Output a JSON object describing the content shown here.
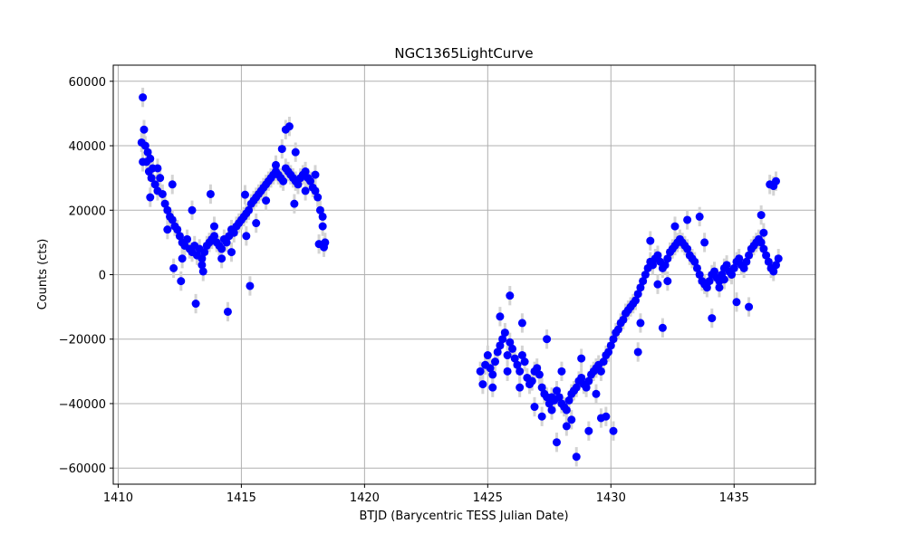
{
  "chart_data": {
    "type": "scatter",
    "title": "NGC1365LightCurve",
    "xlabel": "BTJD (Barycentric TESS Julian Date)",
    "ylabel": "Counts (cts)",
    "xlim": [
      1409.8,
      1438.3
    ],
    "ylim": [
      -65000,
      65000
    ],
    "xticks": [
      1410,
      1415,
      1420,
      1425,
      1430,
      1435
    ],
    "yticks": [
      -60000,
      -40000,
      -20000,
      0,
      20000,
      40000,
      60000
    ],
    "xtick_labels": [
      "1410",
      "1415",
      "1420",
      "1425",
      "1430",
      "1435"
    ],
    "ytick_labels": [
      "−60000",
      "−40000",
      "−20000",
      "0",
      "20000",
      "40000",
      "60000"
    ],
    "grid": true,
    "marker_color": "#0000ff",
    "errorbar_color": "#d3d3d3",
    "errorbar_half_height": 3000,
    "series": [
      {
        "x": [
          1410.95,
          1411.0,
          1411.05,
          1411.1,
          1411.15,
          1411.2,
          1411.25,
          1411.3,
          1411.35,
          1411.4,
          1411.5,
          1411.6,
          1411.7,
          1411.8,
          1411.9,
          1412.0,
          1412.1,
          1412.2,
          1412.3,
          1412.4,
          1412.5,
          1412.6,
          1412.7,
          1412.8,
          1412.9,
          1413.0,
          1413.1,
          1413.2,
          1413.3,
          1413.4,
          1413.5,
          1413.6,
          1413.7,
          1413.8,
          1413.9,
          1414.0,
          1414.1,
          1414.2,
          1414.3,
          1414.4,
          1414.5,
          1414.6,
          1414.7,
          1414.8,
          1414.9,
          1415.0,
          1415.1,
          1415.2,
          1415.3,
          1415.4,
          1415.5,
          1415.6,
          1415.7,
          1415.8,
          1415.9,
          1416.0,
          1416.1,
          1416.2,
          1416.3,
          1416.4,
          1416.5,
          1416.6,
          1416.7,
          1416.8,
          1416.9,
          1417.0,
          1417.1,
          1417.2,
          1417.3,
          1417.4,
          1417.5,
          1417.6,
          1417.7,
          1417.8,
          1417.9,
          1418.0,
          1418.1,
          1418.2,
          1418.3,
          1418.4,
          1411.0,
          1411.3,
          1411.6,
          1412.0,
          1412.2,
          1412.6,
          1413.0,
          1413.4,
          1413.9,
          1414.2,
          1414.6,
          1415.2,
          1415.6,
          1416.0,
          1416.4,
          1416.8,
          1417.2,
          1417.6,
          1418.0,
          1418.3,
          1412.25,
          1412.55,
          1413.15,
          1413.45,
          1413.75,
          1414.45,
          1415.15,
          1415.35,
          1416.65,
          1416.95,
          1417.15,
          1418.15,
          1418.35
        ],
        "y": [
          41000,
          55000,
          45000,
          40000,
          35000,
          38000,
          32000,
          36000,
          30000,
          33000,
          28000,
          26000,
          30000,
          25000,
          22000,
          20000,
          18000,
          17000,
          15000,
          14000,
          12000,
          10000,
          9000,
          11000,
          8000,
          7000,
          9000,
          6000,
          8000,
          5000,
          7000,
          9000,
          10000,
          11000,
          12000,
          10000,
          9000,
          8000,
          11000,
          10000,
          12000,
          14000,
          13000,
          15000,
          16000,
          17000,
          18000,
          19000,
          20000,
          22000,
          23000,
          24000,
          25000,
          26000,
          27000,
          28000,
          29000,
          30000,
          31000,
          32000,
          31000,
          30000,
          29000,
          33000,
          32000,
          31000,
          30000,
          29000,
          28000,
          30000,
          31000,
          32000,
          30000,
          29000,
          27000,
          26000,
          24000,
          20000,
          15000,
          10000,
          35000,
          24000,
          33000,
          14000,
          28000,
          5000,
          20000,
          3000,
          15000,
          5000,
          7000,
          12000,
          16000,
          23000,
          34000,
          45000,
          38000,
          26000,
          31000,
          18000,
          2000,
          -2000,
          -9000,
          1000,
          25000,
          -11500,
          24800,
          -3500,
          39000,
          46000,
          22000,
          9500,
          8500
        ],
        "name": ""
      },
      {
        "x": [
          1424.7,
          1424.8,
          1424.9,
          1425.0,
          1425.1,
          1425.2,
          1425.3,
          1425.4,
          1425.5,
          1425.6,
          1425.7,
          1425.8,
          1425.9,
          1426.0,
          1426.1,
          1426.2,
          1426.3,
          1426.4,
          1426.5,
          1426.6,
          1426.7,
          1426.8,
          1426.9,
          1427.0,
          1427.1,
          1427.2,
          1427.3,
          1427.4,
          1427.5,
          1427.6,
          1427.7,
          1427.8,
          1427.9,
          1428.0,
          1428.1,
          1428.2,
          1428.3,
          1428.4,
          1428.5,
          1428.6,
          1428.7,
          1428.8,
          1428.9,
          1429.0,
          1429.1,
          1429.2,
          1429.3,
          1429.4,
          1429.5,
          1429.6,
          1429.7,
          1429.8,
          1429.9,
          1430.0,
          1430.1,
          1430.2,
          1430.3,
          1430.4,
          1430.5,
          1430.6,
          1430.7,
          1430.8,
          1430.9,
          1431.0,
          1431.1,
          1431.2,
          1431.3,
          1431.4,
          1431.5,
          1431.6,
          1431.7,
          1431.8,
          1431.9,
          1432.0,
          1432.1,
          1432.2,
          1432.3,
          1432.4,
          1432.5,
          1432.6,
          1432.7,
          1432.8,
          1432.9,
          1433.0,
          1433.1,
          1433.2,
          1433.3,
          1433.4,
          1433.5,
          1433.6,
          1433.7,
          1433.8,
          1433.9,
          1434.0,
          1434.1,
          1434.2,
          1434.3,
          1434.4,
          1434.5,
          1434.6,
          1434.7,
          1434.8,
          1434.9,
          1435.0,
          1435.1,
          1435.2,
          1435.3,
          1435.4,
          1435.5,
          1435.6,
          1435.7,
          1435.8,
          1435.9,
          1436.0,
          1436.1,
          1436.2,
          1436.3,
          1436.4,
          1436.5,
          1436.6,
          1436.7,
          1436.8,
          1425.2,
          1425.5,
          1425.9,
          1426.4,
          1426.9,
          1427.4,
          1427.8,
          1428.2,
          1428.6,
          1429.1,
          1429.6,
          1430.1,
          1430.6,
          1431.1,
          1431.6,
          1432.1,
          1432.6,
          1433.1,
          1433.6,
          1434.1,
          1434.6,
          1435.1,
          1435.6,
          1436.1,
          1436.6,
          1425.8,
          1426.3,
          1427.2,
          1427.6,
          1428.0,
          1428.4,
          1428.5,
          1428.8,
          1429.4,
          1429.8,
          1431.2,
          1431.9,
          1432.3,
          1433.8,
          1434.4,
          1436.2,
          1436.45,
          1436.7
        ],
        "y": [
          -30000,
          -34000,
          -28000,
          -25000,
          -29000,
          -31000,
          -27000,
          -24000,
          -22000,
          -20000,
          -18000,
          -25000,
          -21000,
          -23000,
          -26000,
          -28000,
          -30000,
          -25000,
          -27000,
          -32000,
          -34000,
          -33000,
          -30000,
          -29000,
          -31000,
          -35000,
          -37000,
          -38000,
          -40000,
          -42000,
          -39000,
          -36000,
          -38000,
          -40000,
          -41000,
          -42000,
          -39000,
          -37000,
          -36000,
          -35000,
          -33000,
          -32000,
          -34000,
          -35000,
          -33000,
          -31000,
          -30000,
          -29000,
          -28000,
          -30000,
          -27000,
          -25000,
          -24000,
          -22000,
          -20000,
          -18000,
          -17000,
          -15000,
          -14000,
          -12000,
          -11000,
          -10000,
          -9000,
          -8000,
          -6000,
          -4000,
          -2000,
          0,
          2000,
          4000,
          3000,
          5000,
          6000,
          4000,
          2000,
          3000,
          5000,
          7000,
          8000,
          9000,
          10000,
          11000,
          10000,
          9000,
          8000,
          6000,
          5000,
          4000,
          2000,
          0,
          -2000,
          -3000,
          -4000,
          -2000,
          0,
          1000,
          -1000,
          -2000,
          0,
          2000,
          3000,
          1000,
          0,
          2000,
          4000,
          5000,
          3000,
          2000,
          4000,
          6000,
          8000,
          9000,
          10000,
          11000,
          10000,
          8000,
          6000,
          4000,
          2000,
          1000,
          3000,
          5000,
          -35000,
          -13000,
          -6500,
          -15000,
          -41000,
          -20000,
          -52000,
          -47000,
          -56500,
          -48500,
          -44500,
          -48500,
          -12000,
          -24000,
          10500,
          -16500,
          15000,
          17000,
          18000,
          -13500,
          -1500,
          -8500,
          -10000,
          18500,
          27500,
          -30000,
          -35000,
          -44000,
          -38000,
          -30000,
          -45000,
          -36000,
          -26000,
          -37000,
          -44000,
          -15000,
          -3000,
          -2000,
          10000,
          -4000,
          13000,
          28000,
          29000
        ],
        "name": ""
      }
    ]
  }
}
